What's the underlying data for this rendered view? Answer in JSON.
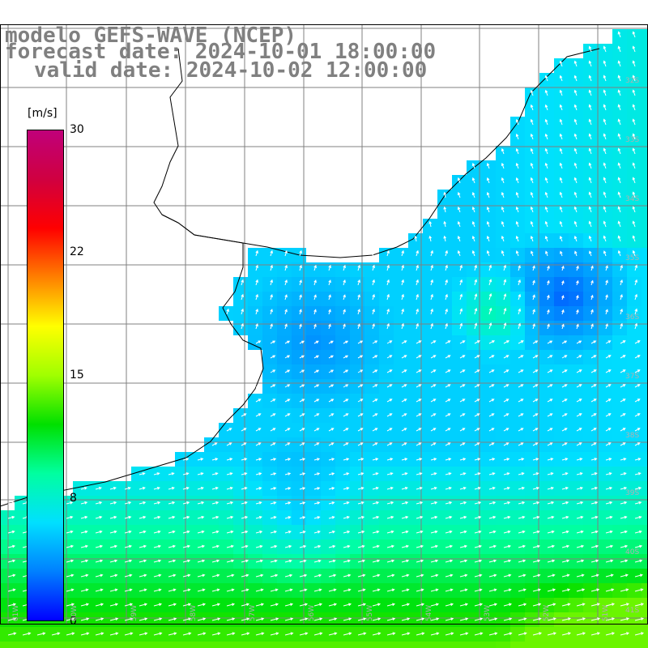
{
  "title": {
    "line1": "modelo GEFS-WAVE (NCEP)",
    "line2": "forecast date: 2024-10-01 18:00:00",
    "line3": "valid date: 2024-10-02 12:00:00"
  },
  "colorbar": {
    "unit": "[m/s]",
    "ticks": [
      "30",
      "22",
      "15",
      "8",
      "0"
    ],
    "tick_values": [
      30,
      22,
      15,
      8,
      0
    ],
    "range": [
      0,
      30
    ],
    "colors": [
      "#0000ff",
      "#0080ff",
      "#00e0ff",
      "#00ffa0",
      "#00e000",
      "#a0ff00",
      "#ffff00",
      "#ff8000",
      "#ff0000",
      "#d00040",
      "#c0007a"
    ]
  },
  "map": {
    "lat_labels": [
      "32S",
      "33S",
      "34S",
      "35S",
      "36S",
      "37S",
      "38S",
      "39S",
      "40S",
      "41S"
    ],
    "lon_labels": [
      "61W",
      "60W",
      "59W",
      "58W",
      "57W",
      "56W",
      "55W",
      "54W",
      "53W",
      "52W",
      "51W"
    ],
    "wind_field": {
      "description_colors": {
        "land": "#ffffff",
        "coast": "#000000",
        "grid": "#808080"
      }
    }
  }
}
